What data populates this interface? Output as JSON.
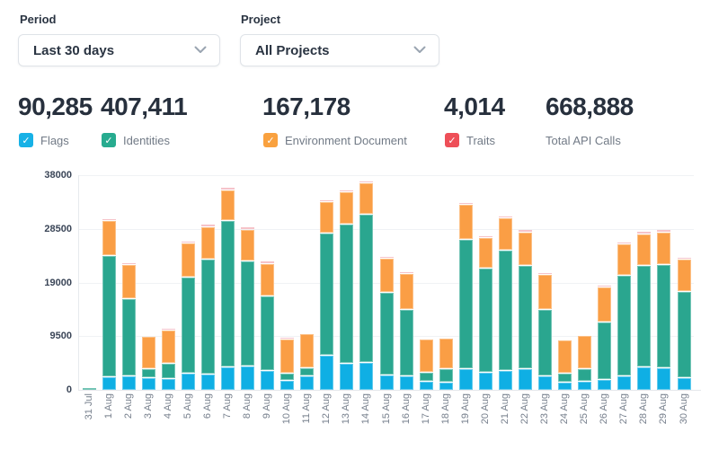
{
  "controls": {
    "period": {
      "label": "Period",
      "value": "Last 30 days"
    },
    "project": {
      "label": "Project",
      "value": "All Projects"
    }
  },
  "stats": [
    {
      "value": "90,285",
      "label": "Flags",
      "checkbox": true,
      "checked": true,
      "color": "#17b1e6"
    },
    {
      "value": "407,411",
      "label": "Identities",
      "checkbox": true,
      "checked": true,
      "color": "#27ab8f"
    },
    {
      "value": "167,178",
      "label": "Environment Document",
      "checkbox": true,
      "checked": true,
      "color": "#f9a13f"
    },
    {
      "value": "4,014",
      "label": "Traits",
      "checkbox": true,
      "checked": true,
      "color": "#ee4f58"
    },
    {
      "value": "668,888",
      "label": "Total API Calls",
      "checkbox": false,
      "checked": false,
      "color": null
    }
  ],
  "checkmark_glyph": "✓",
  "chart_data": {
    "type": "bar",
    "stacked": true,
    "title": "",
    "xlabel": "",
    "ylabel": "",
    "ylim": [
      0,
      38000
    ],
    "yticks": [
      0,
      9500,
      19000,
      28500,
      38000
    ],
    "grid": true,
    "legend_position": "none (stat checkboxes above act as legend)",
    "categories": [
      "31 Jul",
      "1 Aug",
      "2 Aug",
      "3 Aug",
      "4 Aug",
      "5 Aug",
      "6 Aug",
      "7 Aug",
      "8 Aug",
      "9 Aug",
      "10 Aug",
      "11 Aug",
      "12 Aug",
      "13 Aug",
      "14 Aug",
      "15 Aug",
      "16 Aug",
      "17 Aug",
      "18 Aug",
      "19 Aug",
      "20 Aug",
      "21 Aug",
      "22 Aug",
      "23 Aug",
      "24 Aug",
      "25 Aug",
      "26 Aug",
      "27 Aug",
      "28 Aug",
      "29 Aug",
      "30 Aug"
    ],
    "series": [
      {
        "name": "Flags",
        "color": "#0fafe4",
        "values": [
          0,
          2230,
          2440,
          2070,
          1910,
          2870,
          2710,
          3980,
          4090,
          3300,
          1640,
          2340,
          6050,
          4620,
          4830,
          2600,
          2440,
          1430,
          1270,
          3660,
          3030,
          3390,
          3660,
          2440,
          1270,
          1380,
          1800,
          2340,
          3930,
          3770,
          2070
        ]
      },
      {
        "name": "Identities",
        "color": "#2aa68f",
        "values": [
          300,
          21300,
          13400,
          1430,
          2550,
          16800,
          20200,
          25800,
          18500,
          13100,
          1070,
          1320,
          21500,
          24500,
          26000,
          14350,
          11600,
          1440,
          2230,
          22700,
          18200,
          21100,
          18200,
          11600,
          1490,
          2120,
          9950,
          17700,
          17800,
          18200,
          15100
        ]
      },
      {
        "name": "Environment Document",
        "color": "#fa9e45",
        "values": [
          0,
          6000,
          5900,
          5600,
          5700,
          5950,
          5600,
          5150,
          5400,
          5600,
          5900,
          5940,
          5300,
          5600,
          5500,
          5950,
          6100,
          5700,
          5200,
          6100,
          5300,
          5550,
          5700,
          6000,
          5700,
          5750,
          6000,
          5400,
          5500,
          5600,
          5500
        ]
      },
      {
        "name": "Traits",
        "color": "#f2a4ad",
        "values": [
          0,
          100,
          100,
          0,
          100,
          100,
          250,
          320,
          300,
          220,
          100,
          0,
          100,
          150,
          150,
          120,
          100,
          0,
          0,
          150,
          100,
          150,
          200,
          100,
          0,
          0,
          100,
          100,
          300,
          200,
          100
        ]
      }
    ]
  }
}
